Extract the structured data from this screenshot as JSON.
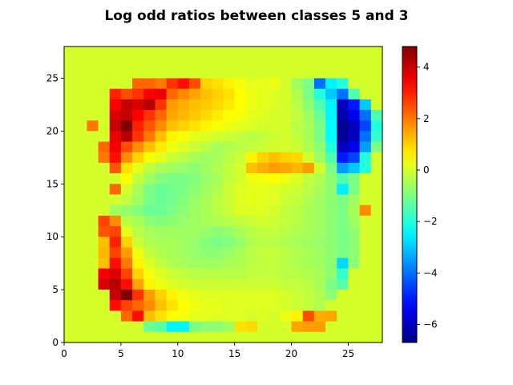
{
  "chart_data": {
    "type": "heatmap",
    "title": "Log odd ratios between classes 5 and 3",
    "xlabel": "",
    "ylabel": "",
    "xlim": [
      0,
      28
    ],
    "ylim": [
      0,
      28
    ],
    "x_ticks": [
      0,
      5,
      10,
      15,
      20,
      25
    ],
    "y_ticks": [
      0,
      5,
      10,
      15,
      20,
      25
    ],
    "grid": false,
    "colormap": "jet",
    "background_value": 0,
    "colorbar": {
      "min": -6.7,
      "max": 4.8,
      "ticks": [
        -6,
        -4,
        -2,
        0,
        2,
        4
      ]
    },
    "row_order": "top-to-bottom, row 0 is y 27-28",
    "grid_values": [
      [
        0,
        0,
        0,
        0,
        0,
        0,
        0,
        0,
        0,
        0,
        0,
        0,
        0,
        0,
        0,
        0,
        0,
        0,
        0,
        0,
        0,
        0,
        0,
        0,
        0,
        0,
        0,
        0
      ],
      [
        0,
        0,
        0,
        0,
        0,
        0,
        0,
        0,
        0,
        0,
        0,
        0,
        0,
        0,
        0,
        0,
        0,
        0,
        0,
        0,
        0,
        0,
        0,
        0,
        0,
        0,
        0,
        0
      ],
      [
        0,
        0,
        0,
        0,
        0,
        0,
        0,
        0,
        0,
        0,
        0,
        0,
        0,
        0,
        0,
        0,
        0,
        0,
        0,
        0,
        0,
        0,
        0,
        0,
        0,
        0,
        0,
        0
      ],
      [
        0,
        0,
        0,
        0,
        0,
        0,
        2.2,
        2.2,
        2.0,
        2.8,
        3.2,
        2.5,
        1.0,
        0.8,
        0.6,
        0.4,
        0.2,
        0.2,
        0.3,
        0,
        -0.6,
        -1.0,
        -4.0,
        -2.5,
        -2.0,
        0,
        0,
        0
      ],
      [
        0,
        0,
        0,
        0,
        3.0,
        2.5,
        2.8,
        3.4,
        3.6,
        2.2,
        1.8,
        1.5,
        1.2,
        1.0,
        0.8,
        0.5,
        0.3,
        0.2,
        0.1,
        0,
        -0.4,
        -1.0,
        -2.0,
        -3.0,
        -4.0,
        -1.5,
        0,
        0
      ],
      [
        0,
        0,
        0,
        0,
        3.4,
        4.0,
        3.8,
        4.2,
        2.8,
        1.6,
        1.4,
        1.2,
        1.1,
        0.9,
        0.7,
        0.5,
        0.3,
        0.2,
        0.1,
        0,
        -0.3,
        -0.8,
        -1.5,
        -2.5,
        -6.0,
        -5.0,
        -3.0,
        0
      ],
      [
        0,
        0,
        0,
        0,
        3.8,
        4.0,
        3.4,
        2.8,
        2.2,
        1.5,
        1.3,
        1.1,
        0.9,
        0.7,
        0.5,
        0.4,
        0.2,
        0.1,
        0,
        0,
        -0.2,
        -0.6,
        -1.2,
        -2.5,
        -6.2,
        -5.5,
        -4.0,
        -1.5
      ],
      [
        0,
        0,
        2.0,
        0,
        4.0,
        4.8,
        3.0,
        2.4,
        1.8,
        1.2,
        1.0,
        0.8,
        0.6,
        0.4,
        0.3,
        0.2,
        0.1,
        0,
        0,
        0,
        -0.3,
        -0.5,
        -1.0,
        -2.4,
        -6.5,
        -6.0,
        -4.5,
        -2.0
      ],
      [
        0,
        0,
        0,
        0,
        3.6,
        4.2,
        2.8,
        2.0,
        1.2,
        0.6,
        0.4,
        0.2,
        0.1,
        0,
        -0.1,
        -0.2,
        -0.3,
        -0.2,
        -0.1,
        0,
        -0.2,
        -0.5,
        -1.0,
        -2.4,
        -6.5,
        -6.0,
        -4.0,
        -1.8
      ],
      [
        0,
        0,
        0,
        2.2,
        3.5,
        2.5,
        1.8,
        1.2,
        0.7,
        0.3,
        0.1,
        -0.1,
        -0.3,
        -0.5,
        -0.4,
        -0.3,
        -0.2,
        -0.1,
        0,
        0,
        -0.1,
        -0.4,
        -0.8,
        -2.0,
        -6.0,
        -5.5,
        -3.5,
        -1.0
      ],
      [
        0,
        0,
        0,
        2.0,
        3.2,
        1.8,
        1.0,
        0.5,
        0.2,
        -0.1,
        -0.3,
        -0.5,
        -0.6,
        -0.5,
        -0.3,
        -0.1,
        0.6,
        1.0,
        1.2,
        1.0,
        0.9,
        0,
        -0.6,
        -1.5,
        -5.0,
        -4.5,
        -2.0,
        0
      ],
      [
        0,
        0,
        0,
        0,
        2.4,
        0.8,
        0.2,
        -0.2,
        -0.5,
        -0.6,
        -0.7,
        -0.8,
        -0.6,
        -0.4,
        -0.2,
        0,
        1.2,
        1.4,
        1.6,
        1.5,
        1.3,
        1.6,
        0,
        -1.0,
        -3.5,
        -3.0,
        -2.0,
        0
      ],
      [
        0,
        0,
        0,
        0,
        0,
        0.5,
        -0.2,
        -0.6,
        -0.9,
        -1.0,
        -1.0,
        -0.9,
        -0.7,
        -0.5,
        -0.2,
        0,
        0.3,
        0.4,
        0.5,
        0.3,
        0.1,
        -0.2,
        -0.4,
        -0.8,
        -1.5,
        -1.0,
        0,
        0
      ],
      [
        0,
        0,
        0,
        0,
        2.2,
        0,
        -0.5,
        -1.0,
        -1.2,
        -1.1,
        -1.0,
        -0.8,
        -0.6,
        -0.4,
        -0.1,
        0.1,
        0.2,
        0.2,
        0.1,
        0,
        -0.1,
        -0.3,
        -0.5,
        -0.8,
        -2.6,
        -1.0,
        0,
        0
      ],
      [
        0,
        0,
        0,
        0,
        0,
        -0.2,
        -0.6,
        -1.0,
        -1.2,
        -1.1,
        -0.9,
        -0.7,
        -0.5,
        -0.3,
        -0.1,
        0.1,
        0.2,
        0.2,
        0.1,
        -0.1,
        -0.2,
        -0.4,
        -0.6,
        -0.8,
        -1.0,
        -0.6,
        0,
        0
      ],
      [
        0,
        0,
        0,
        0,
        -0.6,
        -0.7,
        -0.9,
        -1.2,
        -1.2,
        -1.0,
        -0.8,
        -0.6,
        -0.5,
        -0.3,
        -0.1,
        0.1,
        0.1,
        0.1,
        0,
        -0.2,
        -0.3,
        -0.5,
        -0.6,
        -0.8,
        -1.0,
        -0.5,
        1.8,
        0
      ],
      [
        0,
        0,
        0,
        2.6,
        1.8,
        -0.3,
        -0.5,
        -0.8,
        -0.9,
        -0.8,
        -0.7,
        -0.6,
        -0.5,
        -0.4,
        -0.3,
        -0.2,
        -0.1,
        0,
        -0.1,
        -0.2,
        -0.3,
        -0.5,
        -0.6,
        -0.8,
        -1.0,
        -0.6,
        0,
        0
      ],
      [
        0,
        0,
        0,
        2.4,
        2.6,
        0.2,
        -0.3,
        -0.5,
        -0.6,
        -0.6,
        -0.6,
        -0.6,
        -0.7,
        -0.8,
        -0.7,
        -0.5,
        -0.3,
        -0.2,
        -0.2,
        -0.3,
        -0.4,
        -0.5,
        -0.6,
        -0.8,
        -1.0,
        -0.8,
        0,
        0
      ],
      [
        0,
        0,
        0,
        1.2,
        3.0,
        1.0,
        -0.1,
        -0.4,
        -0.5,
        -0.5,
        -0.6,
        -0.7,
        -0.9,
        -1.0,
        -0.9,
        -0.7,
        -0.4,
        -0.3,
        -0.3,
        -0.4,
        -0.5,
        -0.6,
        -0.7,
        -0.8,
        -1.0,
        -0.8,
        0,
        0
      ],
      [
        0,
        0,
        0,
        1.3,
        2.6,
        1.6,
        0.3,
        -0.2,
        -0.4,
        -0.5,
        -0.6,
        -0.7,
        -0.8,
        -0.8,
        -0.7,
        -0.5,
        -0.3,
        -0.2,
        -0.2,
        -0.3,
        -0.4,
        -0.5,
        -0.6,
        -0.8,
        -1.0,
        -0.8,
        0,
        0
      ],
      [
        0,
        0,
        0,
        1.2,
        3.2,
        2.0,
        0.6,
        0.1,
        -0.2,
        -0.4,
        -0.5,
        -0.6,
        -0.6,
        -0.6,
        -0.5,
        -0.4,
        -0.3,
        -0.2,
        -0.2,
        -0.3,
        -0.4,
        -0.5,
        -0.6,
        -0.8,
        -2.8,
        -0.8,
        0,
        0
      ],
      [
        0,
        0,
        0,
        3.5,
        3.8,
        2.6,
        1.0,
        0.4,
        0.1,
        -0.1,
        -0.2,
        -0.3,
        -0.3,
        -0.3,
        -0.3,
        -0.3,
        -0.2,
        -0.2,
        -0.2,
        -0.3,
        -0.3,
        -0.4,
        -0.5,
        -0.8,
        -1.8,
        0,
        0,
        0
      ],
      [
        0,
        0,
        0,
        3.8,
        4.2,
        3.2,
        1.5,
        0.6,
        0.3,
        0.1,
        0,
        -0.1,
        -0.1,
        -0.1,
        -0.1,
        -0.1,
        -0.1,
        -0.1,
        -0.1,
        -0.2,
        -0.2,
        -0.3,
        -0.5,
        -1.0,
        -1.4,
        0,
        0,
        0
      ],
      [
        0,
        0,
        0,
        0,
        4.0,
        4.8,
        2.8,
        1.6,
        1.0,
        0.6,
        0.3,
        0.2,
        0.1,
        0.1,
        0.1,
        0.1,
        0.1,
        0.1,
        0.1,
        0,
        -0.1,
        -0.2,
        -0.4,
        -0.8,
        0,
        0,
        0,
        0
      ],
      [
        0,
        0,
        0,
        0,
        3.2,
        2.6,
        2.2,
        1.8,
        1.2,
        0.8,
        0.5,
        0.3,
        0.2,
        0.2,
        0.1,
        0.1,
        0.1,
        0.1,
        0.1,
        0,
        -0.1,
        -0.2,
        -0.4,
        0,
        0,
        0,
        0,
        0
      ],
      [
        0,
        0,
        0,
        0,
        0,
        2.2,
        3.2,
        1.2,
        0.8,
        0.5,
        0.4,
        0.2,
        0.2,
        0.1,
        0.1,
        0.1,
        0,
        0.1,
        0,
        0.3,
        0.6,
        2.5,
        1.4,
        1.5,
        0,
        0,
        0,
        0
      ],
      [
        0,
        0,
        0,
        0,
        0,
        0,
        0,
        -1.2,
        -1.4,
        -2.5,
        -2.5,
        -1.0,
        -0.8,
        -0.8,
        -0.6,
        0.8,
        0.9,
        0,
        0,
        0,
        1.5,
        1.6,
        1.6,
        0,
        0,
        0,
        0,
        0
      ],
      [
        0,
        0,
        0,
        0,
        0,
        0,
        0,
        0,
        0,
        0,
        0,
        0,
        0,
        0,
        0,
        0,
        0,
        0,
        0,
        0,
        0,
        0,
        0,
        0,
        0,
        0,
        0,
        0
      ]
    ]
  }
}
